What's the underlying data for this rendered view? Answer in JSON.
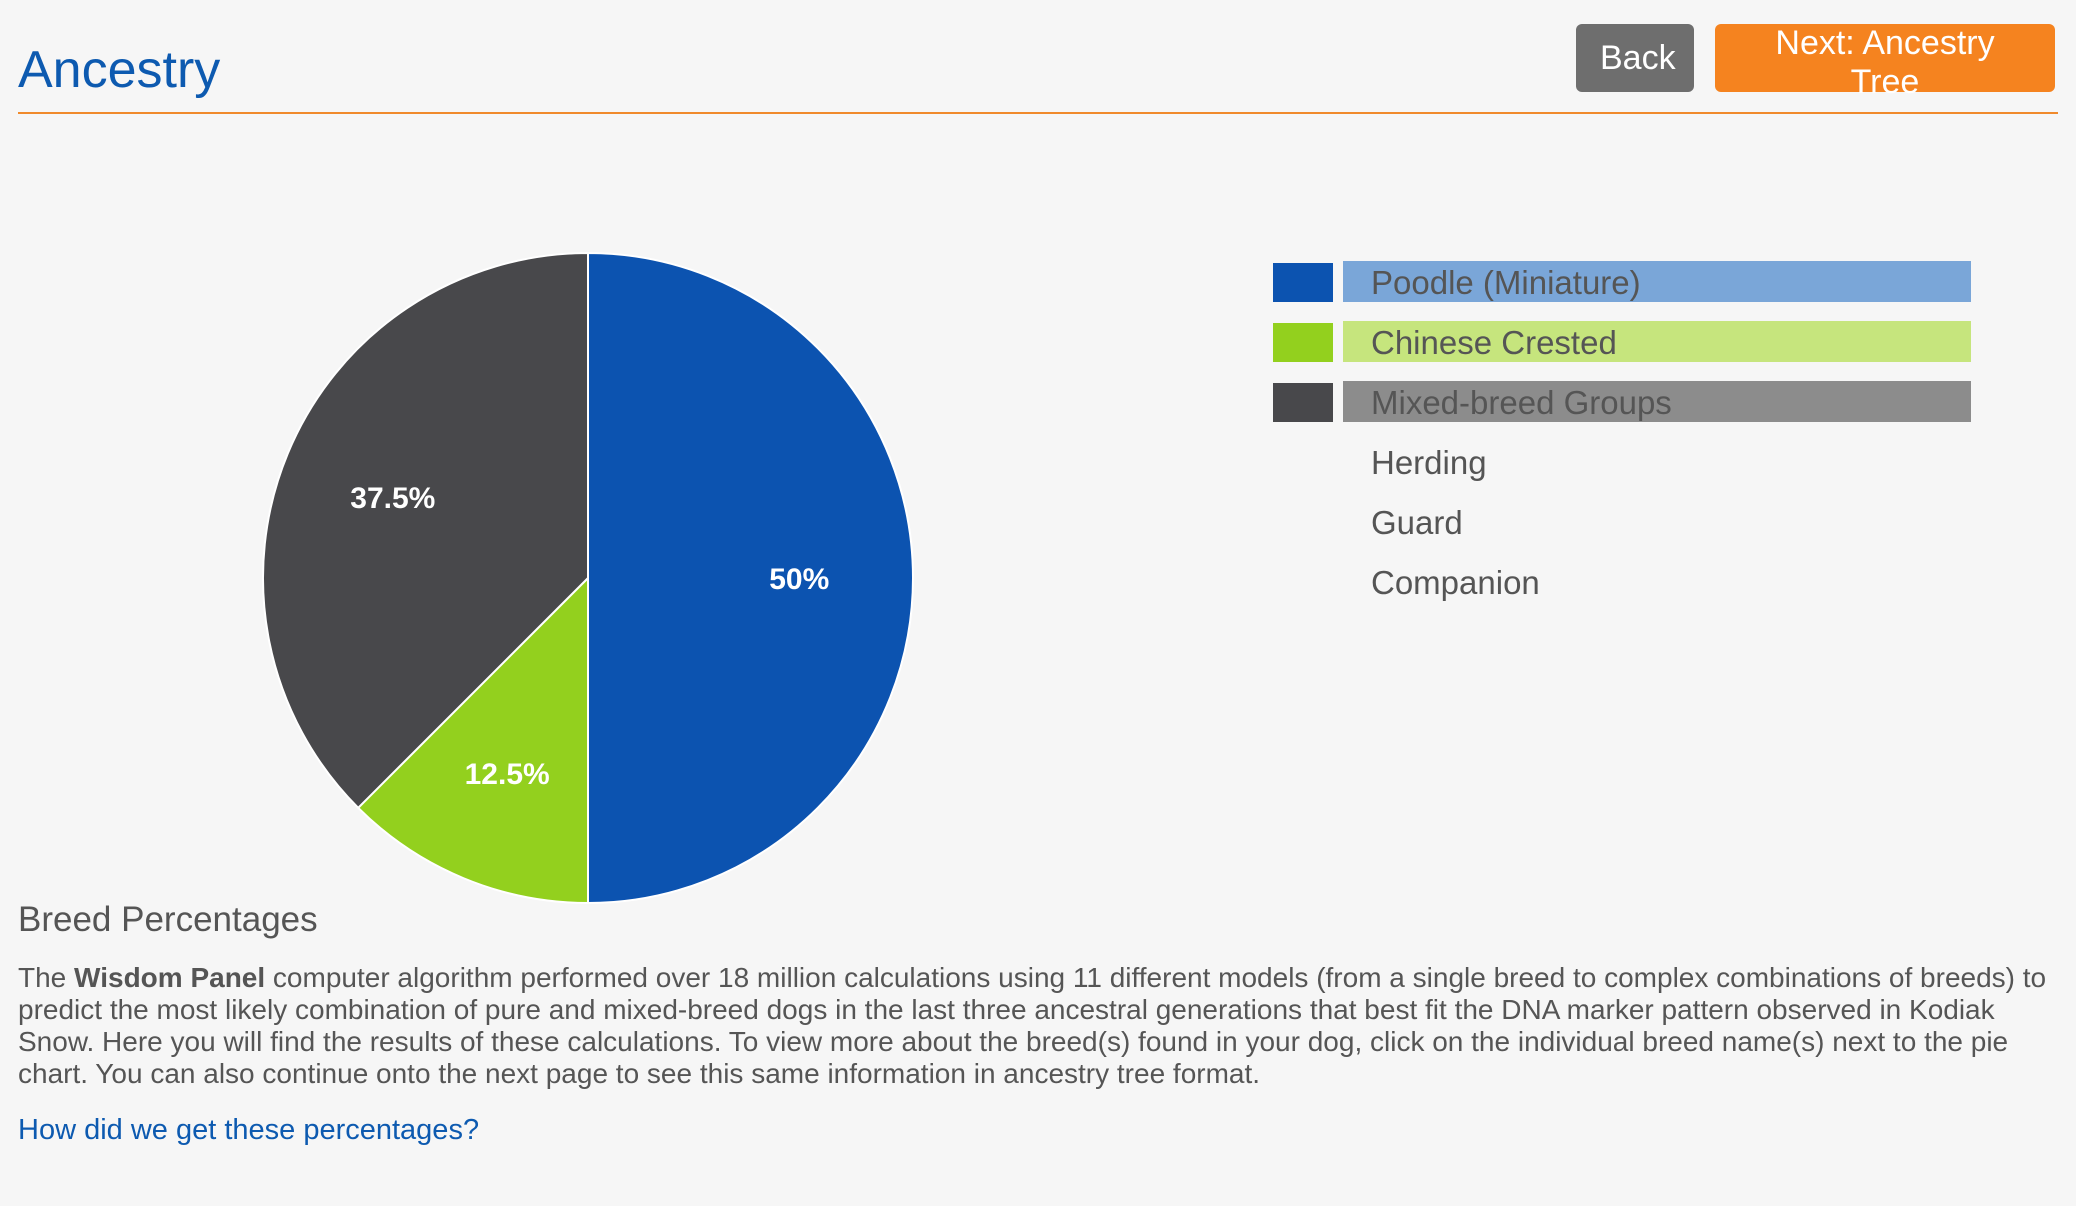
{
  "header": {
    "title": "Ancestry",
    "back_label": "Back",
    "next_label": "Next: Ancestry Tree"
  },
  "colors": {
    "primary_blue": "#0c53b0",
    "green": "#93d01e",
    "dark_gray": "#48484b",
    "accent_orange": "#f5831f"
  },
  "legend": {
    "items": [
      {
        "label": "Poodle (Miniature)",
        "swatch": "#0c53b0",
        "bar": "#7aa6d8"
      },
      {
        "label": "Chinese Crested",
        "swatch": "#93d01e",
        "bar": "#c6e57d"
      },
      {
        "label": "Mixed-breed Groups",
        "swatch": "#48484b",
        "bar": "#8c8c8c"
      }
    ],
    "sub_items": [
      "Herding",
      "Guard",
      "Companion"
    ]
  },
  "chart_data": {
    "type": "pie",
    "categories": [
      "Poodle (Miniature)",
      "Chinese Crested",
      "Mixed-breed Groups"
    ],
    "values": [
      50,
      12.5,
      37.5
    ],
    "labels": [
      "50%",
      "12.5%",
      "37.5%"
    ],
    "colors": [
      "#0c53b0",
      "#93d01e",
      "#48484b"
    ]
  },
  "section": {
    "title": "Breed Percentages",
    "desc_prefix": "The ",
    "desc_brand": "Wisdom Panel",
    "desc_rest": " computer algorithm performed over 18 million calculations using 11 different models (from a single breed to complex combinations of breeds) to predict the most likely combination of pure and mixed-breed dogs in the last three ancestral generations that best fit the DNA marker pattern observed in Kodiak Snow. Here you will find the results of these calculations. To view more about the breed(s) found in your dog, click on the individual breed name(s) next to the pie chart. You can also continue onto the next page to see this same information in ancestry tree format.",
    "link_label": "How did we get these percentages?"
  }
}
